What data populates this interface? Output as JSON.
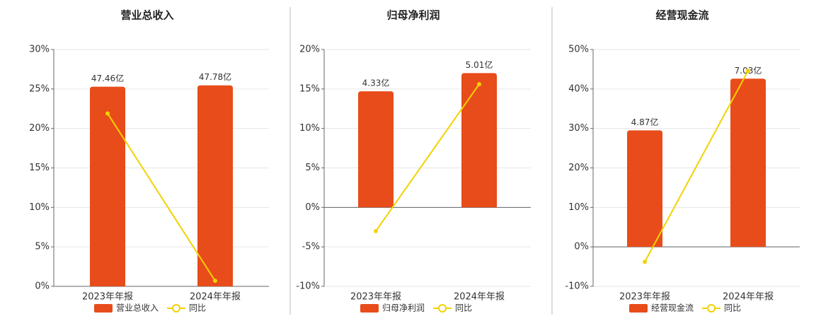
{
  "chart_data": [
    {
      "type": "bar",
      "title": "营业总收入",
      "categories": [
        "2023年年报",
        "2024年年报"
      ],
      "series": [
        {
          "name": "营业总收入",
          "color": "#e84c1a",
          "axis": "y2",
          "values": [
            47.46,
            47.78
          ],
          "value_labels": [
            "47.46亿",
            "47.78亿"
          ]
        },
        {
          "name": "同比",
          "color": "#f2d200",
          "type": "line",
          "values": [
            21.9,
            0.7
          ]
        }
      ],
      "ylim": [
        0,
        30
      ],
      "yticks": [
        {
          "value": 0,
          "label": "0%"
        },
        {
          "value": 5,
          "label": "5%"
        },
        {
          "value": 10,
          "label": "10%"
        },
        {
          "value": 15,
          "label": "15%"
        },
        {
          "value": 20,
          "label": "20%"
        },
        {
          "value": 25,
          "label": "25%"
        },
        {
          "value": 30,
          "label": "30%"
        }
      ],
      "y2lim": [
        0,
        56.3
      ],
      "grid": true
    },
    {
      "type": "bar",
      "title": "归母净利润",
      "categories": [
        "2023年年报",
        "2024年年报"
      ],
      "series": [
        {
          "name": "归母净利润",
          "color": "#e84c1a",
          "axis": "y2",
          "values": [
            4.33,
            5.01
          ],
          "value_labels": [
            "4.33亿",
            "5.01亿"
          ]
        },
        {
          "name": "同比",
          "color": "#f2d200",
          "type": "line",
          "values": [
            -3.0,
            15.6
          ]
        }
      ],
      "ylim": [
        -10,
        20
      ],
      "yticks": [
        {
          "value": -10,
          "label": "-10%"
        },
        {
          "value": -5,
          "label": "-5%"
        },
        {
          "value": 0,
          "label": "0%"
        },
        {
          "value": 5,
          "label": "5%"
        },
        {
          "value": 10,
          "label": "10%"
        },
        {
          "value": 15,
          "label": "15%"
        },
        {
          "value": 20,
          "label": "20%"
        }
      ],
      "y2lim": [
        -2.95,
        5.89
      ],
      "grid": true
    },
    {
      "type": "bar",
      "title": "经营现金流",
      "categories": [
        "2023年年报",
        "2024年年报"
      ],
      "series": [
        {
          "name": "经营现金流",
          "color": "#e84c1a",
          "axis": "y2",
          "values": [
            4.87,
            7.03
          ],
          "value_labels": [
            "4.87亿",
            "7.03亿"
          ]
        },
        {
          "name": "同比",
          "color": "#f2d200",
          "type": "line",
          "values": [
            -3.8,
            44.6
          ]
        }
      ],
      "ylim": [
        -10,
        50
      ],
      "yticks": [
        {
          "value": -10,
          "label": "-10%"
        },
        {
          "value": 0,
          "label": "0%"
        },
        {
          "value": 10,
          "label": "10%"
        },
        {
          "value": 20,
          "label": "20%"
        },
        {
          "value": 30,
          "label": "30%"
        },
        {
          "value": 40,
          "label": "40%"
        },
        {
          "value": 50,
          "label": "50%"
        }
      ],
      "y2lim": [
        -1.65,
        8.25
      ],
      "grid": true
    }
  ]
}
